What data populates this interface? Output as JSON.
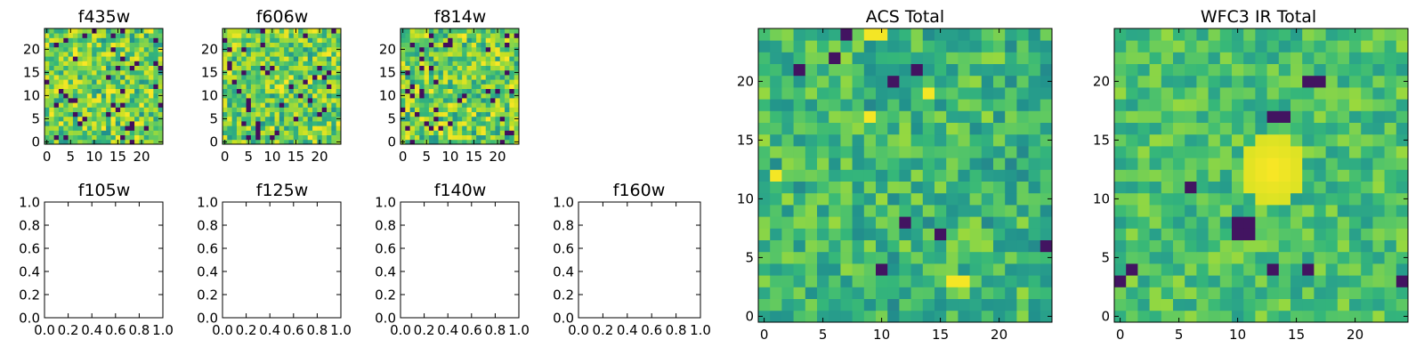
{
  "chart_data": [
    {
      "type": "heatmap",
      "title": "f435w",
      "xticks": [
        "0",
        "5",
        "10",
        "15",
        "20"
      ],
      "yticks": [
        "0",
        "5",
        "10",
        "15",
        "20"
      ],
      "xlim": [
        -0.5,
        24.5
      ],
      "ylim": [
        -0.5,
        24.5
      ],
      "grid_size": 25,
      "colormap": "viridis",
      "seed": 11,
      "style": "noise"
    },
    {
      "type": "heatmap",
      "title": "f606w",
      "xticks": [
        "0",
        "5",
        "10",
        "15",
        "20"
      ],
      "yticks": [
        "0",
        "5",
        "10",
        "15",
        "20"
      ],
      "xlim": [
        -0.5,
        24.5
      ],
      "ylim": [
        -0.5,
        24.5
      ],
      "grid_size": 25,
      "colormap": "viridis",
      "seed": 23,
      "style": "noise"
    },
    {
      "type": "heatmap",
      "title": "f814w",
      "xticks": [
        "0",
        "5",
        "10",
        "15",
        "20"
      ],
      "yticks": [
        "0",
        "5",
        "10",
        "15",
        "20"
      ],
      "xlim": [
        -0.5,
        24.5
      ],
      "ylim": [
        -0.5,
        24.5
      ],
      "grid_size": 25,
      "colormap": "viridis",
      "seed": 37,
      "style": "noise"
    },
    {
      "type": "line",
      "title": "f105w",
      "xticks": [
        "0.0",
        "0.2",
        "0.4",
        "0.6",
        "0.8",
        "1.0"
      ],
      "yticks": [
        "0.0",
        "0.2",
        "0.4",
        "0.6",
        "0.8",
        "1.0"
      ],
      "xlim": [
        0,
        1
      ],
      "ylim": [
        0,
        1
      ],
      "series": []
    },
    {
      "type": "line",
      "title": "f125w",
      "xticks": [
        "0.0",
        "0.2",
        "0.4",
        "0.6",
        "0.8",
        "1.0"
      ],
      "yticks": [
        "0.0",
        "0.2",
        "0.4",
        "0.6",
        "0.8",
        "1.0"
      ],
      "xlim": [
        0,
        1
      ],
      "ylim": [
        0,
        1
      ],
      "series": []
    },
    {
      "type": "line",
      "title": "f140w",
      "xticks": [
        "0.0",
        "0.2",
        "0.4",
        "0.6",
        "0.8",
        "1.0"
      ],
      "yticks": [
        "0.0",
        "0.2",
        "0.4",
        "0.6",
        "0.8",
        "1.0"
      ],
      "xlim": [
        0,
        1
      ],
      "ylim": [
        0,
        1
      ],
      "series": []
    },
    {
      "type": "line",
      "title": "f160w",
      "xticks": [
        "0.0",
        "0.2",
        "0.4",
        "0.6",
        "0.8",
        "1.0"
      ],
      "yticks": [
        "0.0",
        "0.2",
        "0.4",
        "0.6",
        "0.8",
        "1.0"
      ],
      "xlim": [
        0,
        1
      ],
      "ylim": [
        0,
        1
      ],
      "series": []
    },
    {
      "type": "heatmap",
      "title": "ACS Total",
      "xticks": [
        "0",
        "5",
        "10",
        "15",
        "20"
      ],
      "yticks": [
        "0",
        "5",
        "10",
        "15",
        "20"
      ],
      "xlim": [
        -0.5,
        24.5
      ],
      "ylim": [
        -0.5,
        24.5
      ],
      "grid_size": 25,
      "colormap": "viridis",
      "seed": 53,
      "style": "acs",
      "dark_pixels": [
        [
          3,
          21
        ],
        [
          11,
          20
        ],
        [
          13,
          21
        ],
        [
          12,
          8
        ],
        [
          15,
          7
        ],
        [
          10,
          4
        ],
        [
          24,
          6
        ],
        [
          7,
          24
        ],
        [
          6,
          22
        ]
      ],
      "bright_pixels": [
        [
          9,
          24
        ],
        [
          10,
          24
        ],
        [
          9,
          17
        ],
        [
          16,
          3
        ],
        [
          17,
          3
        ],
        [
          14,
          19
        ],
        [
          1,
          12
        ]
      ]
    },
    {
      "type": "heatmap",
      "title": "WFC3 IR Total",
      "xticks": [
        "0",
        "5",
        "10",
        "15",
        "20"
      ],
      "yticks": [
        "0",
        "5",
        "10",
        "15",
        "20"
      ],
      "xlim": [
        -0.5,
        24.5
      ],
      "ylim": [
        -0.5,
        24.5
      ],
      "grid_size": 25,
      "colormap": "viridis",
      "seed": 71,
      "style": "wfc3",
      "bright_blob": {
        "x": 13,
        "y": 12.5,
        "radius": 3
      },
      "dark_pixels": [
        [
          13,
          17
        ],
        [
          14,
          17
        ],
        [
          10,
          8
        ],
        [
          11,
          8
        ],
        [
          10,
          7
        ],
        [
          11,
          7
        ],
        [
          6,
          11
        ],
        [
          0,
          3
        ],
        [
          1,
          4
        ],
        [
          13,
          4
        ],
        [
          16,
          4
        ],
        [
          24,
          3
        ],
        [
          17,
          20
        ],
        [
          16,
          20
        ]
      ]
    }
  ]
}
